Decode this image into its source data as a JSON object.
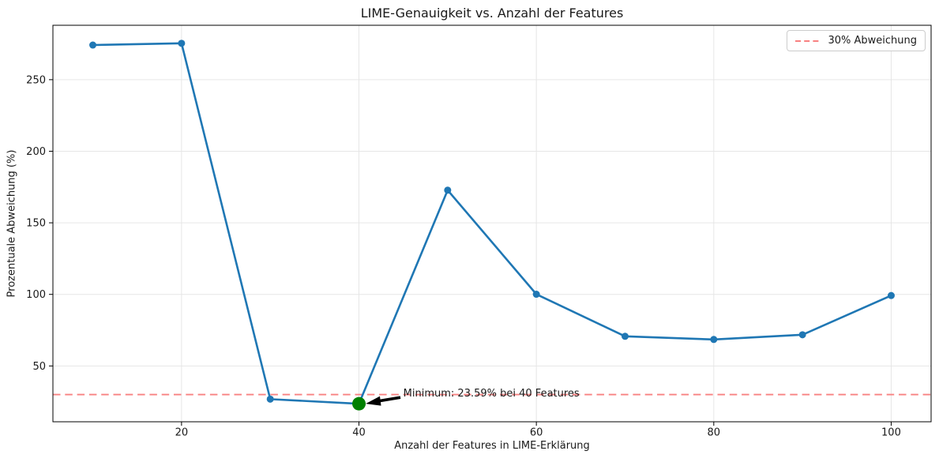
{
  "chart_data": {
    "type": "line",
    "title": "LIME-Genauigkeit vs. Anzahl der Features",
    "xlabel": "Anzahl der Features in LIME-Erklärung",
    "ylabel": "Prozentuale Abweichung (%)",
    "x": [
      10,
      20,
      30,
      40,
      50,
      60,
      70,
      80,
      90,
      100
    ],
    "y": [
      274.2,
      275.4,
      26.8,
      23.59,
      172.8,
      100.1,
      70.7,
      68.5,
      71.8,
      99.2
    ],
    "xlim": [
      5.5,
      104.5
    ],
    "ylim": [
      11,
      288
    ],
    "xticks": [
      20,
      40,
      60,
      80,
      100
    ],
    "yticks": [
      50,
      100,
      150,
      200,
      250
    ],
    "grid": true,
    "line_color": "#1f77b4",
    "grid_color": "#e6e6e6",
    "threshold": {
      "value": 30,
      "label": "30% Abweichung",
      "color": "#f88181",
      "style": "dashed"
    },
    "minimum": {
      "x": 40,
      "y": 23.59,
      "marker_color": "#008000"
    },
    "annotation": {
      "text": "Minimum: 23.59% bei 40 Features",
      "text_x": 45,
      "text_y": 30
    },
    "legend": {
      "position": "upper right",
      "entries": [
        {
          "label": "30% Abweichung",
          "color": "#f88181",
          "style": "dashed"
        }
      ]
    }
  }
}
